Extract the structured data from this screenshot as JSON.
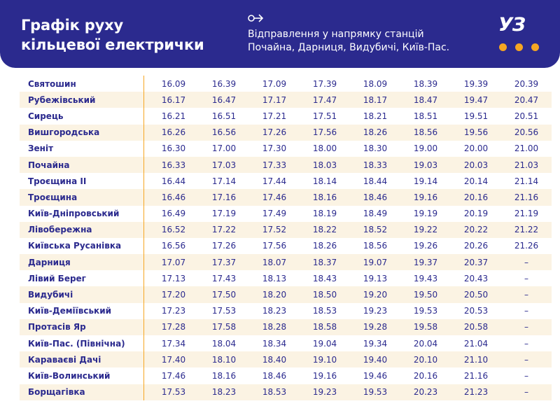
{
  "header": {
    "title_line1": "Графік руху",
    "title_line2": "кільцевої електрички",
    "subtitle_line1": "Відправлення у напрямку станцій",
    "subtitle_line2": "Почайна, Дарниця, Видубичі, Київ-Пас.",
    "logo_text": "УЗ",
    "brand_color": "#2b2a8e",
    "accent_color": "#f5a623"
  },
  "schedule": {
    "rows": [
      {
        "station": "Святошин",
        "times": [
          "16.09",
          "16.39",
          "17.09",
          "17.39",
          "18.09",
          "18.39",
          "19.39",
          "20.39"
        ]
      },
      {
        "station": "Рубежівський",
        "times": [
          "16.17",
          "16.47",
          "17.17",
          "17.47",
          "18.17",
          "18.47",
          "19.47",
          "20.47"
        ]
      },
      {
        "station": "Сирець",
        "times": [
          "16.21",
          "16.51",
          "17.21",
          "17.51",
          "18.21",
          "18.51",
          "19.51",
          "20.51"
        ]
      },
      {
        "station": "Вишгородська",
        "times": [
          "16.26",
          "16.56",
          "17.26",
          "17.56",
          "18.26",
          "18.56",
          "19.56",
          "20.56"
        ]
      },
      {
        "station": "Зеніт",
        "times": [
          "16.30",
          "17.00",
          "17.30",
          "18.00",
          "18.30",
          "19.00",
          "20.00",
          "21.00"
        ]
      },
      {
        "station": "Почайна",
        "times": [
          "16.33",
          "17.03",
          "17.33",
          "18.03",
          "18.33",
          "19.03",
          "20.03",
          "21.03"
        ]
      },
      {
        "station": "Троєщина II",
        "times": [
          "16.44",
          "17.14",
          "17.44",
          "18.14",
          "18.44",
          "19.14",
          "20.14",
          "21.14"
        ]
      },
      {
        "station": "Троєщина",
        "times": [
          "16.46",
          "17.16",
          "17.46",
          "18.16",
          "18.46",
          "19.16",
          "20.16",
          "21.16"
        ]
      },
      {
        "station": "Київ-Дніпровський",
        "times": [
          "16.49",
          "17.19",
          "17.49",
          "18.19",
          "18.49",
          "19.19",
          "20.19",
          "21.19"
        ]
      },
      {
        "station": "Лівобережна",
        "times": [
          "16.52",
          "17.22",
          "17.52",
          "18.22",
          "18.52",
          "19.22",
          "20.22",
          "21.22"
        ]
      },
      {
        "station": "Київська Русанівка",
        "times": [
          "16.56",
          "17.26",
          "17.56",
          "18.26",
          "18.56",
          "19.26",
          "20.26",
          "21.26"
        ]
      },
      {
        "station": "Дарниця",
        "times": [
          "17.07",
          "17.37",
          "18.07",
          "18.37",
          "19.07",
          "19.37",
          "20.37",
          "–"
        ]
      },
      {
        "station": "Лівий Берег",
        "times": [
          "17.13",
          "17.43",
          "18.13",
          "18.43",
          "19.13",
          "19.43",
          "20.43",
          "–"
        ]
      },
      {
        "station": "Видубичі",
        "times": [
          "17.20",
          "17.50",
          "18.20",
          "18.50",
          "19.20",
          "19.50",
          "20.50",
          "–"
        ]
      },
      {
        "station": "Київ-Деміївський",
        "times": [
          "17.23",
          "17.53",
          "18.23",
          "18.53",
          "19.23",
          "19.53",
          "20.53",
          "–"
        ]
      },
      {
        "station": "Протасів Яр",
        "times": [
          "17.28",
          "17.58",
          "18.28",
          "18.58",
          "19.28",
          "19.58",
          "20.58",
          "–"
        ]
      },
      {
        "station": "Київ-Пас. (Північна)",
        "times": [
          "17.34",
          "18.04",
          "18.34",
          "19.04",
          "19.34",
          "20.04",
          "21.04",
          "–"
        ]
      },
      {
        "station": "Караваєві Дачі",
        "times": [
          "17.40",
          "18.10",
          "18.40",
          "19.10",
          "19.40",
          "20.10",
          "21.10",
          "–"
        ]
      },
      {
        "station": "Київ-Волинський",
        "times": [
          "17.46",
          "18.16",
          "18.46",
          "19.16",
          "19.46",
          "20.16",
          "21.16",
          "–"
        ]
      },
      {
        "station": "Борщагівка",
        "times": [
          "17.53",
          "18.23",
          "18.53",
          "19.23",
          "19.53",
          "20.23",
          "21.23",
          "–"
        ]
      }
    ]
  }
}
